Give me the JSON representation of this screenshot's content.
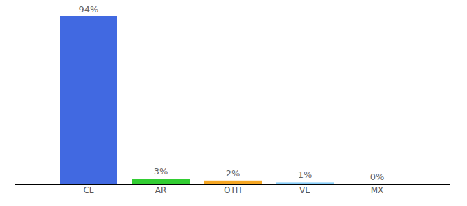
{
  "chart_data": {
    "type": "bar",
    "categories": [
      "CL",
      "AR",
      "OTH",
      "VE",
      "MX"
    ],
    "values": [
      94,
      3,
      2,
      1,
      0
    ],
    "value_labels": [
      "94%",
      "3%",
      "2%",
      "1%",
      "0%"
    ],
    "colors": [
      "#4169e1",
      "#32cd32",
      "#f5a623",
      "#87cefa",
      "#ba55d3"
    ],
    "ylim": [
      0,
      100
    ],
    "data_labels": true,
    "tick_labels": "x"
  }
}
